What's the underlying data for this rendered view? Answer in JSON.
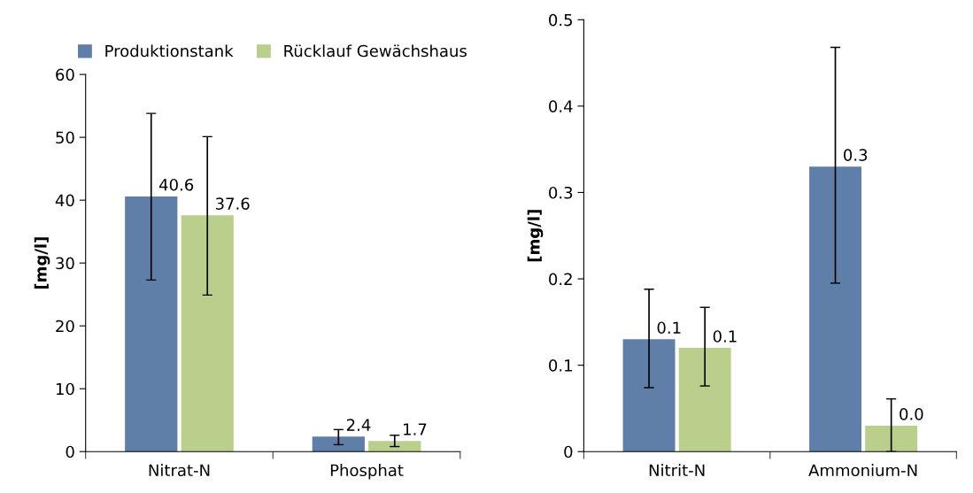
{
  "chart_data": [
    {
      "type": "bar",
      "ylabel": "[mg/l]",
      "categories": [
        "Nitrat-N",
        "Phosphat"
      ],
      "ylim": [
        0,
        60
      ],
      "yticks": [
        0,
        10,
        20,
        30,
        40,
        50,
        60
      ],
      "grid": false,
      "legend": "top",
      "series": [
        {
          "name": "Produktionstank",
          "color": "#5f7fa8",
          "values": [
            40.6,
            2.4
          ],
          "errors": [
            [
              27.3,
              53.8
            ],
            [
              1.1,
              3.5
            ]
          ],
          "value_labels": [
            "40.6",
            "2.4"
          ]
        },
        {
          "name": "Rücklauf Gewächshaus",
          "color": "#b9cf8b",
          "values": [
            37.6,
            1.7
          ],
          "errors": [
            [
              24.9,
              50.1
            ],
            [
              0.8,
              2.6
            ]
          ],
          "value_labels": [
            "37.6",
            "1.7"
          ]
        }
      ]
    },
    {
      "type": "bar",
      "ylabel": "[mg/l]",
      "categories": [
        "Nitrit-N",
        "Ammonium-N"
      ],
      "ylim": [
        0,
        0.5
      ],
      "yticks": [
        0,
        0.1,
        0.2,
        0.3,
        0.4,
        0.5
      ],
      "grid": false,
      "legend": false,
      "series": [
        {
          "color": "#5f7fa8",
          "values": [
            0.13,
            0.33
          ],
          "errors": [
            [
              0.074,
              0.188
            ],
            [
              0.195,
              0.468
            ]
          ],
          "value_labels": [
            "0.1",
            "0.3"
          ]
        },
        {
          "color": "#b9cf8b",
          "values": [
            0.12,
            0.03
          ],
          "errors": [
            [
              0.076,
              0.167
            ],
            [
              0.0,
              0.061
            ]
          ],
          "value_labels": [
            "0.1",
            "0.0"
          ]
        }
      ]
    }
  ]
}
